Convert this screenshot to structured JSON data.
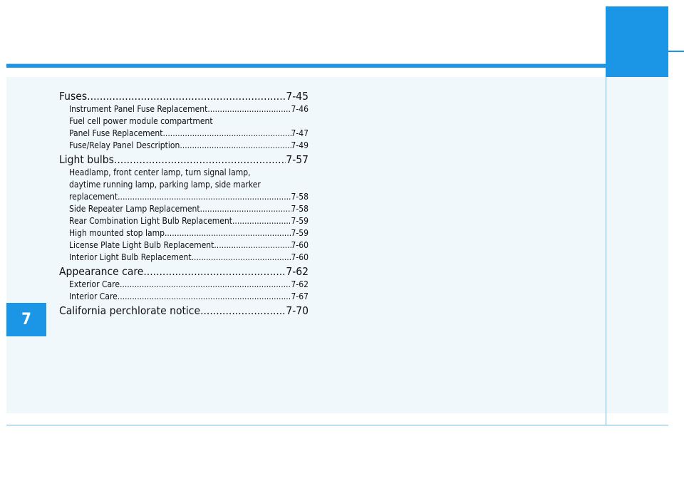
{
  "chapter_tab": "7",
  "colors": {
    "accent": "#1b96e6",
    "panel": "#f0f8fc"
  },
  "toc": [
    {
      "level": "major",
      "label": "Fuses",
      "page": "7-45"
    },
    {
      "level": "minor",
      "label": "Instrument Panel Fuse Replacement",
      "page": "7-46"
    },
    {
      "level": "minor",
      "label": "Fuel cell power module compartment",
      "page": ""
    },
    {
      "level": "minor",
      "label": "Panel Fuse Replacement",
      "page": "7-47"
    },
    {
      "level": "minor",
      "label": "Fuse/Relay Panel Description",
      "page": "7-49"
    },
    {
      "level": "major",
      "label": "Light bulbs",
      "page": "7-57"
    },
    {
      "level": "minor",
      "label": "Headlamp, front center lamp, turn signal lamp,",
      "page": ""
    },
    {
      "level": "minor",
      "label": "daytime running lamp, parking lamp, side marker",
      "page": ""
    },
    {
      "level": "minor",
      "label": "replacement",
      "page": "7-58"
    },
    {
      "level": "minor",
      "label": "Side Repeater Lamp Replacement",
      "page": "7-58"
    },
    {
      "level": "minor",
      "label": "Rear Combination Light Bulb Replacement",
      "page": "7-59"
    },
    {
      "level": "minor",
      "label": "High mounted stop lamp",
      "page": "7-59"
    },
    {
      "level": "minor",
      "label": "License Plate Light Bulb Replacement",
      "page": "7-60"
    },
    {
      "level": "minor",
      "label": "Interior Light Bulb Replacement",
      "page": "7-60"
    },
    {
      "level": "major",
      "label": "Appearance care",
      "page": "7-62"
    },
    {
      "level": "minor",
      "label": "Exterior Care",
      "page": "7-62"
    },
    {
      "level": "minor",
      "label": "Interior Care",
      "page": "7-67"
    },
    {
      "level": "major",
      "label": "California perchlorate notice",
      "page": "7-70"
    }
  ]
}
